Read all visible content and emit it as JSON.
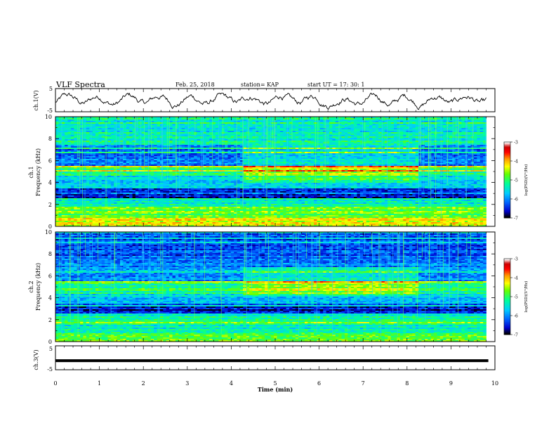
{
  "header": {
    "title": "VLF Spectra",
    "date": "Feb. 25, 2018",
    "station": "station= KAP",
    "start": "start  UT =   17: 30: 1"
  },
  "colorbar": {
    "label": "log(PSD)(V²/Hz)",
    "ticks": [
      "-3",
      "-4",
      "-5",
      "-6",
      "-7"
    ],
    "colors": [
      "#ffffff",
      "#cc0000",
      "#ff0000",
      "#ff9900",
      "#ffff00",
      "#66ff00",
      "#00ff99",
      "#00ccff",
      "#0066ff",
      "#0000cc",
      "#000000"
    ]
  },
  "chart_data": [
    {
      "type": "line",
      "panel": "ch1-waveform",
      "ylabel": "ch.1(V)",
      "ylim": [
        -5,
        5
      ],
      "yticks": [
        "5",
        "-5"
      ],
      "xlim": [
        0,
        10
      ],
      "approx_range": [
        -4,
        3
      ]
    },
    {
      "type": "heatmap",
      "panel": "ch1-spectrogram",
      "ylabel": "ch.1\nFrequency  (kHz)",
      "ylim": [
        0,
        10
      ],
      "yticks": [
        "10",
        "8",
        "6",
        "4",
        "2",
        "0"
      ],
      "xlim": [
        0,
        9.8
      ],
      "bands_khz": [
        {
          "from": 0,
          "to": 0.8,
          "log_psd": -4.3
        },
        {
          "from": 0.8,
          "to": 1.8,
          "log_psd": -4.8
        },
        {
          "from": 1.8,
          "to": 2.6,
          "log_psd": -5.4
        },
        {
          "from": 2.6,
          "to": 3.4,
          "log_psd": -6.6
        },
        {
          "from": 3.4,
          "to": 4.6,
          "log_psd": -5.6
        },
        {
          "from": 4.6,
          "to": 5.5,
          "log_psd": -5.1
        },
        {
          "from": 5.5,
          "to": 7.5,
          "log_psd": -6.2
        },
        {
          "from": 7.5,
          "to": 10,
          "log_psd": -5.4
        }
      ]
    },
    {
      "type": "heatmap",
      "panel": "ch2-spectrogram",
      "ylabel": "ch.2\nFrequency  (kHz)",
      "ylim": [
        0,
        10
      ],
      "yticks": [
        "10",
        "8",
        "6",
        "4",
        "2",
        "0"
      ],
      "xlim": [
        0,
        9.8
      ],
      "bands_khz": [
        {
          "from": 0,
          "to": 0.8,
          "log_psd": -4.8
        },
        {
          "from": 0.8,
          "to": 2.6,
          "log_psd": -5.3
        },
        {
          "from": 2.6,
          "to": 3.4,
          "log_psd": -6.6
        },
        {
          "from": 3.4,
          "to": 4.6,
          "log_psd": -5.6
        },
        {
          "from": 4.6,
          "to": 5.5,
          "log_psd": -5.1
        },
        {
          "from": 5.5,
          "to": 7.5,
          "log_psd": -6.0
        },
        {
          "from": 7.5,
          "to": 10,
          "log_psd": -6.3
        }
      ]
    },
    {
      "type": "line",
      "panel": "ch3-waveform",
      "ylabel": "ch.3(V)",
      "ylim": [
        -5,
        5
      ],
      "yticks": [
        "5",
        "-5"
      ],
      "xlim": [
        0,
        10
      ],
      "constant_value": -1.2
    }
  ],
  "xaxis": {
    "label": "Time  (min)",
    "ticks": [
      "0",
      "1",
      "2",
      "3",
      "4",
      "5",
      "6",
      "7",
      "8",
      "9",
      "10"
    ],
    "range": [
      0,
      10
    ]
  }
}
